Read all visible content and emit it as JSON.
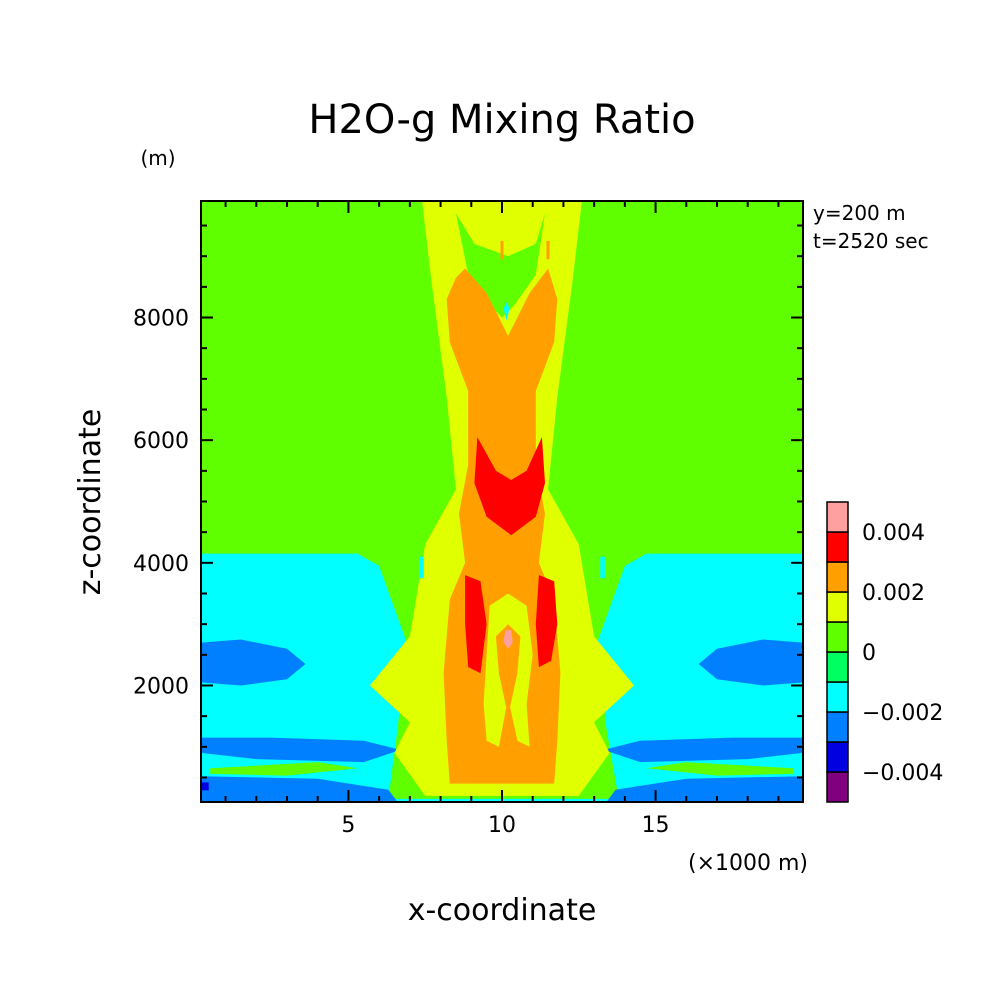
{
  "chart_data": {
    "type": "heatmap",
    "title": "H2O-g Mixing Ratio",
    "xlabel": "x-coordinate",
    "ylabel": "z-coordinate",
    "x_unit": "(×1000 m)",
    "y_unit": "(m)",
    "annotations": [
      "y=200 m",
      "t=2520 sec"
    ],
    "xlim": [
      0.2,
      19.8
    ],
    "ylim": [
      100,
      9900
    ],
    "x_ticks": [
      5,
      10,
      15
    ],
    "y_ticks": [
      2000,
      4000,
      6000,
      8000
    ],
    "colorbar": {
      "levels": [
        -0.005,
        -0.004,
        -0.003,
        -0.002,
        -0.001,
        0,
        0.001,
        0.002,
        0.003,
        0.004,
        0.005
      ],
      "labels": [
        "-0.004",
        "-0.002",
        "0",
        "0.002",
        "0.004"
      ],
      "label_values": [
        -0.004,
        -0.002,
        0,
        0.002,
        0.004
      ],
      "colors": [
        "#800080",
        "#0000e0",
        "#0080ff",
        "#00ffff",
        "#00ff60",
        "#60ff00",
        "#e0ff00",
        "#ffa000",
        "#ff0000",
        "#ffa0a0"
      ]
    },
    "regions": [
      {
        "value_range": [
          0,
          0.001
        ],
        "description": "background field",
        "polygon": [
          [
            0.2,
            100
          ],
          [
            19.8,
            100
          ],
          [
            19.8,
            9900
          ],
          [
            0.2,
            9900
          ]
        ]
      },
      {
        "value_range": [
          -0.002,
          -0.001
        ],
        "polygon": [
          [
            0.2,
            100
          ],
          [
            0.2,
            4150
          ],
          [
            5.3,
            4150
          ],
          [
            6,
            3950
          ],
          [
            6.9,
            2700
          ],
          [
            6.6,
            1300
          ],
          [
            6.3,
            150
          ],
          [
            13.8,
            150
          ],
          [
            13.4,
            1300
          ],
          [
            13.1,
            2700
          ],
          [
            14,
            3950
          ],
          [
            14.7,
            4150
          ],
          [
            19.8,
            4150
          ],
          [
            19.8,
            100
          ]
        ]
      },
      {
        "value_range": [
          -0.003,
          -0.002
        ],
        "polygon": [
          [
            0.2,
            2700
          ],
          [
            1.5,
            2750
          ],
          [
            3,
            2600
          ],
          [
            3.6,
            2350
          ],
          [
            3,
            2100
          ],
          [
            1.5,
            2000
          ],
          [
            0.2,
            2050
          ]
        ]
      },
      {
        "value_range": [
          -0.003,
          -0.002
        ],
        "polygon": [
          [
            19.8,
            2700
          ],
          [
            18.5,
            2750
          ],
          [
            17,
            2600
          ],
          [
            16.4,
            2350
          ],
          [
            17,
            2100
          ],
          [
            18.5,
            2000
          ],
          [
            19.8,
            2050
          ]
        ]
      },
      {
        "value_range": [
          -0.003,
          -0.002
        ],
        "polygon": [
          [
            0.2,
            1150
          ],
          [
            2.5,
            1150
          ],
          [
            5.5,
            1100
          ],
          [
            6.7,
            950
          ],
          [
            5.5,
            750
          ],
          [
            2,
            800
          ],
          [
            0.2,
            900
          ]
        ]
      },
      {
        "value_range": [
          -0.003,
          -0.002
        ],
        "polygon": [
          [
            19.8,
            1150
          ],
          [
            17.5,
            1150
          ],
          [
            14.5,
            1100
          ],
          [
            13.3,
            950
          ],
          [
            14.5,
            750
          ],
          [
            18,
            800
          ],
          [
            19.8,
            900
          ]
        ]
      },
      {
        "value_range": [
          -0.003,
          -0.002
        ],
        "polygon": [
          [
            0.2,
            520
          ],
          [
            4,
            480
          ],
          [
            6.3,
            300
          ],
          [
            6.6,
            100
          ],
          [
            0.2,
            100
          ]
        ]
      },
      {
        "value_range": [
          -0.003,
          -0.002
        ],
        "polygon": [
          [
            19.8,
            520
          ],
          [
            16,
            480
          ],
          [
            13.7,
            300
          ],
          [
            13.4,
            100
          ],
          [
            19.8,
            100
          ]
        ]
      },
      {
        "value_range": [
          0,
          0.001
        ],
        "polygon": [
          [
            0.5,
            650
          ],
          [
            4,
            750
          ],
          [
            5.3,
            650
          ],
          [
            3,
            530
          ],
          [
            0.5,
            560
          ]
        ]
      },
      {
        "value_range": [
          0,
          0.001
        ],
        "polygon": [
          [
            19.5,
            650
          ],
          [
            16,
            750
          ],
          [
            14.7,
            650
          ],
          [
            17,
            530
          ],
          [
            19.5,
            560
          ]
        ]
      },
      {
        "value_range": [
          0.001,
          0.002
        ],
        "polygon": [
          [
            7.4,
            9900
          ],
          [
            12.6,
            9900
          ],
          [
            12.3,
            8600
          ],
          [
            11.8,
            6700
          ],
          [
            11.5,
            5200
          ],
          [
            12.5,
            4300
          ],
          [
            13,
            2800
          ],
          [
            14.3,
            2000
          ],
          [
            13,
            1400
          ],
          [
            13.5,
            900
          ],
          [
            12.5,
            200
          ],
          [
            7.5,
            200
          ],
          [
            6.5,
            900
          ],
          [
            7,
            1400
          ],
          [
            5.7,
            2000
          ],
          [
            7,
            2800
          ],
          [
            7.5,
            4300
          ],
          [
            8.5,
            5200
          ],
          [
            8.2,
            6700
          ],
          [
            7.7,
            8600
          ]
        ]
      },
      {
        "value_range": [
          0,
          0.001
        ],
        "polygon": [
          [
            8.5,
            9700
          ],
          [
            9.1,
            9200
          ],
          [
            10.2,
            9000
          ],
          [
            11.1,
            9200
          ],
          [
            11.4,
            9700
          ],
          [
            11.1,
            8700
          ],
          [
            10.4,
            8200
          ],
          [
            10,
            8000
          ],
          [
            9.6,
            8200
          ],
          [
            8.9,
            8700
          ]
        ]
      },
      {
        "value_range": [
          0.002,
          0.003
        ],
        "polygon": [
          [
            8.5,
            8650
          ],
          [
            8.8,
            8800
          ],
          [
            9.5,
            8400
          ],
          [
            10.2,
            7700
          ],
          [
            10.9,
            8400
          ],
          [
            11.5,
            8800
          ],
          [
            11.8,
            8300
          ],
          [
            11.7,
            7600
          ],
          [
            11.1,
            6800
          ],
          [
            11.1,
            5600
          ],
          [
            11.4,
            4800
          ],
          [
            11.2,
            4000
          ],
          [
            11.7,
            3400
          ],
          [
            11.9,
            2200
          ],
          [
            11.8,
            1100
          ],
          [
            11.7,
            400
          ],
          [
            8.3,
            400
          ],
          [
            8.2,
            1100
          ],
          [
            8.1,
            2200
          ],
          [
            8.3,
            3400
          ],
          [
            8.8,
            4000
          ],
          [
            8.6,
            4800
          ],
          [
            8.9,
            5600
          ],
          [
            8.9,
            6800
          ],
          [
            8.3,
            7600
          ],
          [
            8.2,
            8300
          ]
        ]
      },
      {
        "value_range": [
          0.003,
          0.004
        ],
        "polygon": [
          [
            9.2,
            6050
          ],
          [
            9.8,
            5500
          ],
          [
            10.3,
            5350
          ],
          [
            10.8,
            5500
          ],
          [
            11.3,
            6050
          ],
          [
            11.4,
            5300
          ],
          [
            11.1,
            4750
          ],
          [
            10.3,
            4450
          ],
          [
            9.5,
            4750
          ],
          [
            9.1,
            5300
          ]
        ]
      },
      {
        "value_range": [
          0.003,
          0.004
        ],
        "polygon": [
          [
            8.8,
            3800
          ],
          [
            9.3,
            3700
          ],
          [
            9.5,
            3000
          ],
          [
            9.3,
            2200
          ],
          [
            8.9,
            2300
          ],
          [
            8.8,
            3000
          ]
        ]
      },
      {
        "value_range": [
          0.003,
          0.004
        ],
        "polygon": [
          [
            11.2,
            3800
          ],
          [
            11.7,
            3700
          ],
          [
            11.8,
            3000
          ],
          [
            11.6,
            2400
          ],
          [
            11.2,
            2300
          ],
          [
            11.1,
            3000
          ]
        ]
      },
      {
        "value_range": [
          0.001,
          0.002
        ],
        "polygon": [
          [
            9.6,
            3300
          ],
          [
            10.2,
            3500
          ],
          [
            10.8,
            3300
          ],
          [
            11,
            2500
          ],
          [
            10.8,
            1700
          ],
          [
            10.9,
            1000
          ],
          [
            10.5,
            1100
          ],
          [
            10.2,
            1800
          ],
          [
            9.9,
            1000
          ],
          [
            9.5,
            1100
          ],
          [
            9.4,
            1700
          ]
        ]
      },
      {
        "value_range": [
          0.002,
          0.003
        ],
        "polygon": [
          [
            9.8,
            2800
          ],
          [
            10.2,
            3000
          ],
          [
            10.6,
            2800
          ],
          [
            10.5,
            2200
          ],
          [
            10.2,
            1500
          ],
          [
            9.9,
            2200
          ]
        ]
      },
      {
        "value_range": [
          0.004,
          0.005
        ],
        "polygon": [
          [
            10.1,
            2900
          ],
          [
            10.3,
            2900
          ],
          [
            10.35,
            2700
          ],
          [
            10.2,
            2600
          ],
          [
            10.05,
            2700
          ]
        ]
      },
      {
        "value_range": [
          0.002,
          0.003
        ],
        "polygon": [
          [
            9.95,
            9250
          ],
          [
            10.05,
            9250
          ],
          [
            10.05,
            8950
          ],
          [
            9.95,
            8950
          ]
        ]
      },
      {
        "value_range": [
          0.002,
          0.003
        ],
        "polygon": [
          [
            11.45,
            9250
          ],
          [
            11.55,
            9250
          ],
          [
            11.55,
            8950
          ],
          [
            11.45,
            8950
          ]
        ]
      },
      {
        "value_range": [
          -0.002,
          -0.001
        ],
        "polygon": [
          [
            10.05,
            8150
          ],
          [
            10.15,
            8250
          ],
          [
            10.25,
            8150
          ],
          [
            10.15,
            7950
          ]
        ]
      },
      {
        "value_range": [
          -0.002,
          -0.001
        ],
        "polygon": [
          [
            7.3,
            4100
          ],
          [
            7.45,
            4100
          ],
          [
            7.45,
            3750
          ],
          [
            7.3,
            3750
          ]
        ]
      },
      {
        "value_range": [
          -0.002,
          -0.001
        ],
        "polygon": [
          [
            13.2,
            4100
          ],
          [
            13.35,
            4100
          ],
          [
            13.35,
            3750
          ],
          [
            13.2,
            3750
          ]
        ]
      },
      {
        "value_range": [
          -0.004,
          -0.003
        ],
        "polygon": [
          [
            0.2,
            420
          ],
          [
            0.45,
            420
          ],
          [
            0.45,
            290
          ],
          [
            0.2,
            290
          ]
        ]
      }
    ]
  }
}
